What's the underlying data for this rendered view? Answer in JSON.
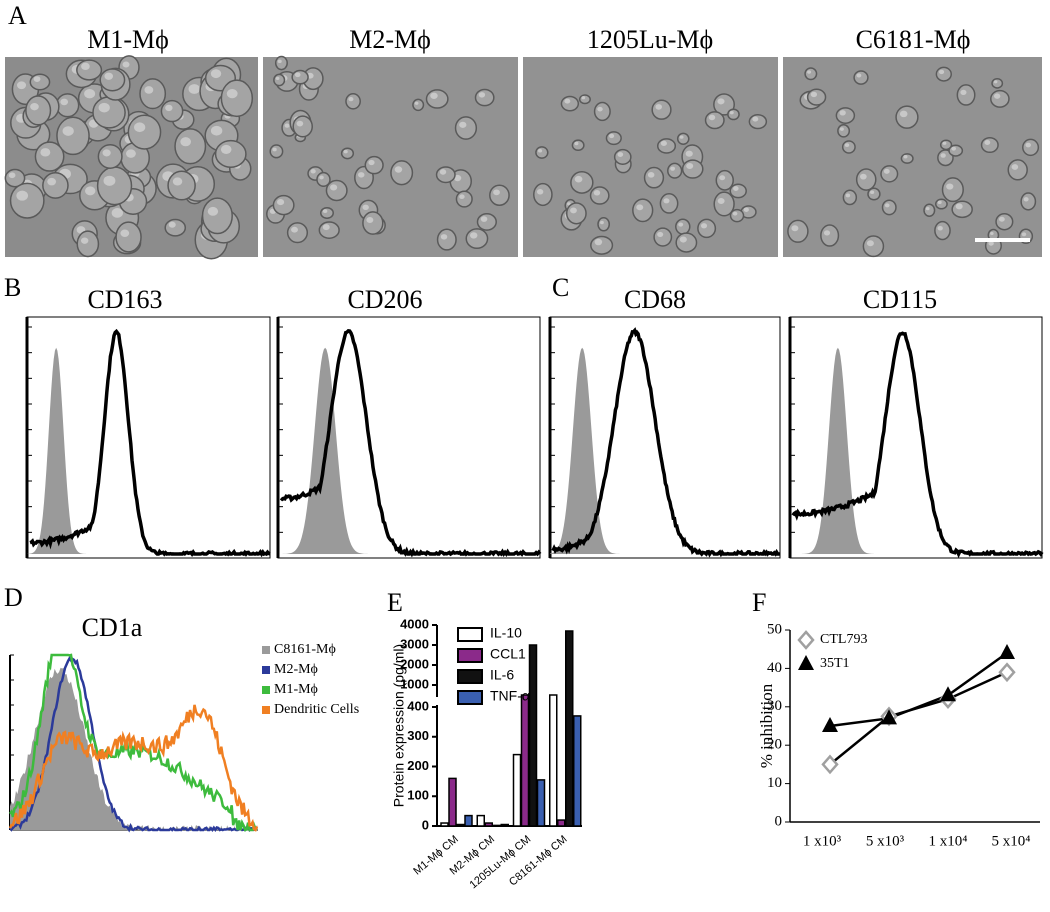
{
  "panel_labels": [
    "A",
    "B",
    "C",
    "D",
    "E",
    "F"
  ],
  "panel_a": {
    "titles": [
      "M1-Mϕ",
      "M2-Mϕ",
      "1205Lu-Mϕ",
      "C6181-Mϕ"
    ]
  },
  "panel_b": {
    "titles": [
      "CD163",
      "CD206"
    ]
  },
  "panel_c": {
    "titles": [
      "CD68",
      "CD115"
    ]
  },
  "panel_d": {
    "title": "CD1a",
    "legend": [
      {
        "name": "C8161-Mϕ",
        "color": "#9a9a9a"
      },
      {
        "name": "M2-Mϕ",
        "color": "#2b3a9a"
      },
      {
        "name": "M1-Mϕ",
        "color": "#3dbb3d"
      },
      {
        "name": "Dendritic Cells",
        "color": "#f07f22"
      }
    ]
  },
  "chart_data": [
    {
      "type": "bar",
      "y_label": "Protein expression (pg/ml)",
      "categories": [
        "M1-Mϕ CM",
        "M2-Mϕ CM",
        "1205Lu-Mϕ CM",
        "C8161-Mϕ CM"
      ],
      "series": [
        {
          "name": "IL-10",
          "color": "#ffffff",
          "values": [
            10,
            35,
            240,
            500
          ]
        },
        {
          "name": "CCL1",
          "color": "#8b2a8a",
          "values": [
            160,
            10,
            500,
            20
          ]
        },
        {
          "name": "IL-6",
          "color": "#111111",
          "values": [
            5,
            2,
            3000,
            3700
          ]
        },
        {
          "name": "TNF-α",
          "color": "#3a5fb0",
          "values": [
            35,
            5,
            155,
            370
          ]
        }
      ],
      "ylim": [
        0,
        4000
      ],
      "axis_break": [
        400,
        500
      ],
      "yticks": [
        0,
        100,
        200,
        300,
        400,
        1000,
        2000,
        3000,
        4000
      ]
    },
    {
      "type": "line",
      "y_label": "% inhibition",
      "categories": [
        "1 x10³",
        "5 x10³",
        "1 x10⁴",
        "5 x10⁴"
      ],
      "series": [
        {
          "name": "CTL793",
          "color": "#a0a0a0",
          "marker": "diamond",
          "values": [
            15,
            27.5,
            32,
            39
          ]
        },
        {
          "name": "35T1",
          "color": "#000000",
          "marker": "triangle",
          "values": [
            25,
            27,
            33,
            44
          ]
        }
      ],
      "ylim": [
        0,
        50
      ],
      "yticks": [
        0,
        10,
        20,
        30,
        40,
        50
      ]
    }
  ]
}
